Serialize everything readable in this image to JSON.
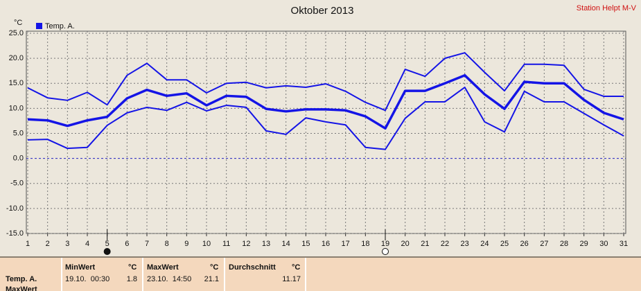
{
  "chart_data": {
    "type": "line",
    "title": "Oktober 2013",
    "subtitle": "Station Helpt M-V",
    "y_label": "°C",
    "x": [
      1,
      2,
      3,
      4,
      5,
      6,
      7,
      8,
      9,
      10,
      11,
      12,
      13,
      14,
      15,
      16,
      17,
      18,
      19,
      20,
      21,
      22,
      23,
      24,
      25,
      26,
      27,
      28,
      29,
      30,
      31
    ],
    "xlim": [
      1,
      31
    ],
    "xticks": [
      1,
      2,
      3,
      4,
      5,
      6,
      7,
      8,
      9,
      10,
      11,
      12,
      13,
      14,
      15,
      16,
      17,
      18,
      19,
      20,
      21,
      22,
      23,
      24,
      25,
      26,
      27,
      28,
      29,
      30,
      31
    ],
    "ylim": [
      -15,
      25
    ],
    "yticks": [
      {
        "value": -15,
        "label": "-15.0"
      },
      {
        "value": -10,
        "label": "-10.0"
      },
      {
        "value": -5,
        "label": "-5.0"
      },
      {
        "value": 0,
        "label": "0.0"
      },
      {
        "value": 5,
        "label": "5.0"
      },
      {
        "value": 10,
        "label": "10.0"
      },
      {
        "value": 15,
        "label": "15.0"
      },
      {
        "value": 20,
        "label": "20.0"
      },
      {
        "value": 25,
        "label": "25.0"
      }
    ],
    "grid": true,
    "legend": "top-left",
    "moon_days": [
      5,
      19
    ],
    "series": [
      {
        "name": "Temp. A.",
        "color": "#1414e6",
        "values": [
          7.8,
          7.6,
          6.5,
          7.6,
          8.3,
          12.0,
          13.7,
          12.5,
          13.0,
          10.6,
          12.5,
          12.3,
          9.9,
          9.4,
          9.8,
          9.8,
          9.6,
          8.4,
          6.0,
          13.5,
          13.5,
          15.0,
          16.6,
          12.8,
          9.9,
          15.3,
          15.0,
          15.0,
          11.7,
          9.1,
          7.8
        ],
        "max": [
          14.1,
          12.1,
          11.6,
          13.2,
          10.7,
          16.6,
          19.0,
          15.7,
          15.7,
          13.1,
          15.0,
          15.2,
          14.1,
          14.5,
          14.2,
          14.9,
          13.4,
          11.2,
          9.6,
          17.8,
          16.4,
          20.0,
          21.1,
          17.2,
          13.5,
          18.8,
          18.8,
          18.6,
          13.8,
          12.4,
          12.4
        ],
        "min": [
          3.7,
          3.8,
          2.0,
          2.2,
          6.6,
          9.1,
          10.2,
          9.6,
          11.2,
          9.5,
          10.6,
          10.2,
          5.5,
          4.8,
          8.1,
          7.3,
          6.7,
          2.2,
          1.8,
          8.0,
          11.3,
          11.3,
          14.2,
          7.3,
          5.3,
          13.4,
          11.3,
          11.3,
          9.0,
          6.7,
          4.5
        ]
      }
    ]
  },
  "table": {
    "columns": [
      "MinWert",
      "°C",
      "MaxWert",
      "°C",
      "Durchschnitt",
      "°C"
    ],
    "rows": [
      [
        "Temp. A.",
        "19.10.  00:30",
        1.8,
        "23.10.  14:50",
        21.1,
        11.17
      ],
      [
        "MaxWert"
      ]
    ]
  }
}
